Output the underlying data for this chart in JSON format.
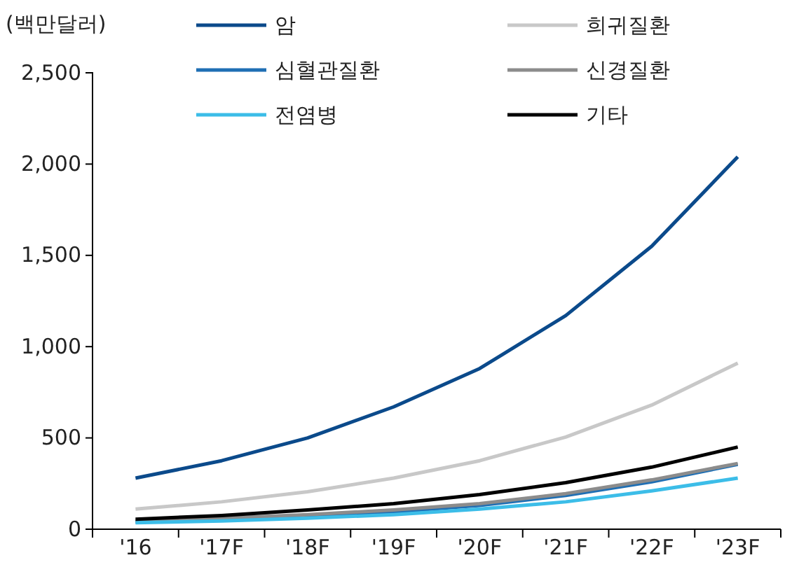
{
  "chart_data": {
    "type": "line",
    "ylabel": "(백만달러)",
    "categories": [
      "'16",
      "'17F",
      "'18F",
      "'19F",
      "'20F",
      "'21F",
      "'22F",
      "'23F"
    ],
    "ylim": [
      0,
      2500
    ],
    "yticks": [
      0,
      {
        "value": 500,
        "label": "500"
      },
      {
        "value": 1000,
        "label": "1,000"
      },
      {
        "value": 1500,
        "label": "1,500"
      },
      {
        "value": 2000,
        "label": "2,000"
      },
      {
        "value": 2500,
        "label": "2,500"
      }
    ],
    "legend": "top",
    "grid": false,
    "marker": "none",
    "line_style": "solid",
    "series": [
      {
        "name": "암",
        "color": "#0b4a8b",
        "values": [
          280,
          375,
          500,
          670,
          880,
          1170,
          1550,
          2040
        ]
      },
      {
        "name": "희귀질환",
        "color": "#c8c8c8",
        "values": [
          110,
          150,
          205,
          280,
          375,
          505,
          680,
          910
        ]
      },
      {
        "name": "심혈관질환",
        "color": "#1f6fb4",
        "values": [
          40,
          55,
          70,
          95,
          130,
          185,
          260,
          355
        ]
      },
      {
        "name": "신경질환",
        "color": "#8c8c8c",
        "values": [
          45,
          60,
          80,
          105,
          140,
          195,
          270,
          360
        ]
      },
      {
        "name": "전염병",
        "color": "#3cbde8",
        "values": [
          35,
          45,
          60,
          80,
          110,
          150,
          210,
          280
        ]
      },
      {
        "name": "기타",
        "color": "#000000",
        "values": [
          55,
          75,
          105,
          140,
          190,
          255,
          340,
          450
        ]
      }
    ]
  }
}
